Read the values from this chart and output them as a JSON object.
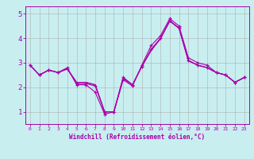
{
  "xlabel": "Windchill (Refroidissement éolien,°C)",
  "x": [
    0,
    1,
    2,
    3,
    4,
    5,
    6,
    7,
    8,
    9,
    10,
    11,
    12,
    13,
    14,
    15,
    16,
    17,
    18,
    19,
    20,
    21,
    22,
    23
  ],
  "line1": [
    2.9,
    2.5,
    2.7,
    2.6,
    2.8,
    2.1,
    2.1,
    1.8,
    0.9,
    1.0,
    2.3,
    2.05,
    2.9,
    3.7,
    4.1,
    4.8,
    4.5,
    3.2,
    3.0,
    2.9,
    2.6,
    2.5,
    2.2,
    2.4
  ],
  "line2": [
    2.9,
    2.5,
    2.7,
    2.6,
    2.75,
    2.15,
    2.15,
    2.05,
    1.0,
    1.0,
    2.4,
    2.1,
    2.85,
    3.55,
    4.0,
    4.72,
    4.42,
    3.1,
    2.9,
    2.8,
    2.6,
    2.5,
    2.2,
    2.4
  ],
  "line3": [
    2.9,
    2.5,
    2.7,
    2.6,
    2.75,
    2.2,
    2.2,
    2.1,
    1.0,
    1.0,
    2.4,
    2.1,
    2.85,
    3.5,
    3.98,
    4.7,
    4.4,
    3.08,
    2.9,
    2.8,
    2.6,
    2.5,
    2.2,
    2.4
  ],
  "line4": [
    2.9,
    2.5,
    2.7,
    2.6,
    2.75,
    2.2,
    2.2,
    2.1,
    1.0,
    1.0,
    2.35,
    2.1,
    2.85,
    3.5,
    3.98,
    4.7,
    4.4,
    3.08,
    2.9,
    2.8,
    2.6,
    2.5,
    2.2,
    2.4
  ],
  "line_color": "#aa00aa",
  "bg_color": "#c8eef0",
  "grid_color": "#b0b0b0",
  "ylim": [
    0.5,
    5.3
  ],
  "yticks": [
    1,
    2,
    3,
    4,
    5
  ],
  "xlim": [
    -0.5,
    23.5
  ]
}
